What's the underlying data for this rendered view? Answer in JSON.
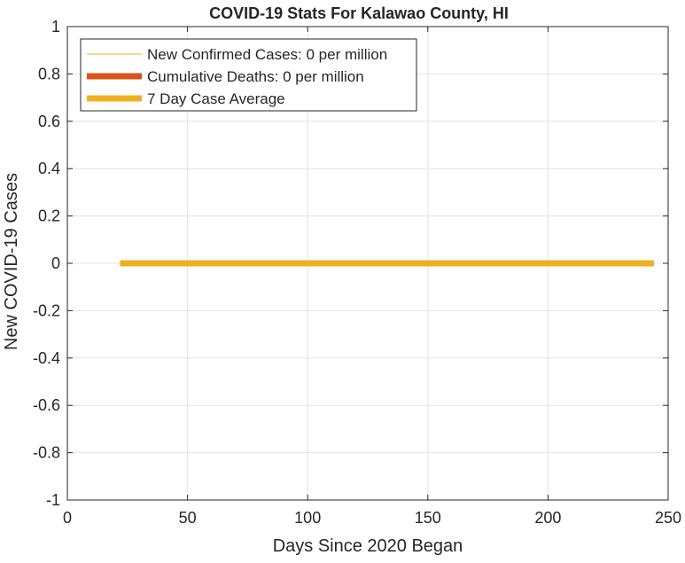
{
  "chart_data": {
    "type": "line",
    "title": "COVID-19 Stats For Kalawao County, HI",
    "xlabel": "Days Since 2020 Began",
    "ylabel": "New COVID-19 Cases",
    "xlim": [
      0,
      250
    ],
    "ylim": [
      -1,
      1
    ],
    "xticks": [
      0,
      50,
      100,
      150,
      200,
      250
    ],
    "yticks": [
      -1,
      -0.8,
      -0.6,
      -0.4,
      -0.2,
      0,
      0.2,
      0.4,
      0.6,
      0.8,
      1
    ],
    "xtick_labels": [
      "0",
      "50",
      "100",
      "150",
      "200",
      "250"
    ],
    "ytick_labels": [
      "-1",
      "-0.8",
      "-0.6",
      "-0.4",
      "-0.2",
      "0",
      "0.2",
      "0.4",
      "0.6",
      "0.8",
      "1"
    ],
    "grid": true,
    "legend_position": "top-left",
    "series": [
      {
        "name": "New Confirmed Cases: 0 per million",
        "color": "#EDB120",
        "line_width": "thin",
        "x": [
          22,
          244
        ],
        "y": [
          0,
          0
        ]
      },
      {
        "name": "Cumulative Deaths: 0 per million",
        "color": "#D95319",
        "line_width": "thick",
        "x": [
          22,
          244
        ],
        "y": [
          0,
          0
        ]
      },
      {
        "name": "7 Day Case Average",
        "color": "#EDB120",
        "line_width": "thick",
        "x": [
          22,
          244
        ],
        "y": [
          0,
          0
        ]
      }
    ]
  }
}
